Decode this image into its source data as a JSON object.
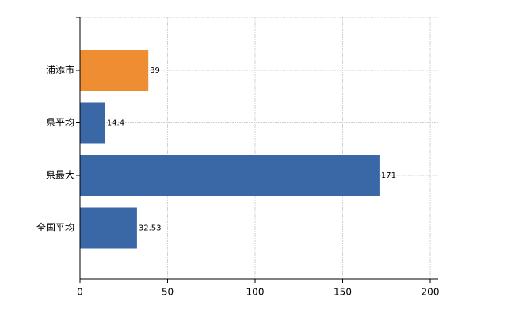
{
  "chart_data": {
    "type": "hbar",
    "categories": [
      "浦添市",
      "県平均",
      "県最大",
      "全国平均"
    ],
    "values": [
      39,
      14.4,
      171,
      32.53
    ],
    "colors": [
      "#ef8d32",
      "#3a68a6",
      "#3a68a6",
      "#3a68a6"
    ],
    "xlim": [
      0,
      200
    ],
    "xticks": [
      0,
      50,
      100,
      150,
      200
    ],
    "grid": true
  }
}
